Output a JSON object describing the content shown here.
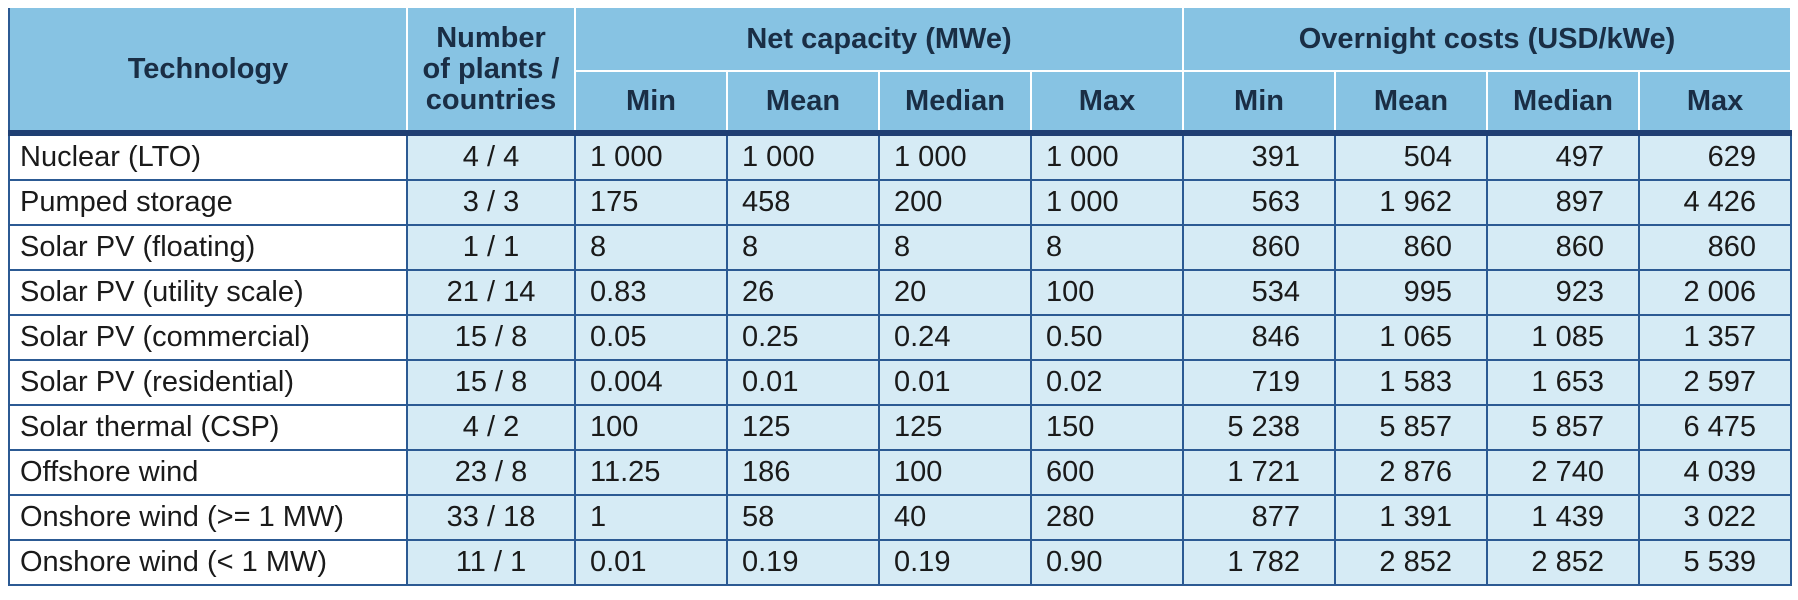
{
  "header": {
    "technology": "Technology",
    "number_line1": "Number",
    "number_line2": "of plants /",
    "number_line3": "countries",
    "net_capacity": "Net capacity (MWe)",
    "overnight_costs": "Overnight costs (USD/kWe)",
    "sub": [
      "Min",
      "Mean",
      "Median",
      "Max",
      "Min",
      "Mean",
      "Median",
      "Max"
    ]
  },
  "rows": [
    {
      "tech": "Nuclear (LTO)",
      "num": "4 / 4",
      "cap": [
        "1 000",
        "1 000",
        "1 000",
        "1 000"
      ],
      "cost": [
        "391",
        "504",
        "497",
        "629"
      ]
    },
    {
      "tech": "Pumped storage",
      "num": "3 / 3",
      "cap": [
        "175",
        "458",
        "200",
        "1 000"
      ],
      "cost": [
        "563",
        "1 962",
        "897",
        "4 426"
      ]
    },
    {
      "tech": "Solar PV (floating)",
      "num": "1 / 1",
      "cap": [
        "8",
        "8",
        "8",
        "8"
      ],
      "cost": [
        "860",
        "860",
        "860",
        "860"
      ]
    },
    {
      "tech": "Solar PV (utility scale)",
      "num": "21 / 14",
      "cap": [
        "0.83",
        "26",
        "20",
        "100"
      ],
      "cost": [
        "534",
        "995",
        "923",
        "2 006"
      ]
    },
    {
      "tech": "Solar PV (commercial)",
      "num": "15 / 8",
      "cap": [
        "0.05",
        "0.25",
        "0.24",
        "0.50"
      ],
      "cost": [
        "846",
        "1 065",
        "1 085",
        "1 357"
      ]
    },
    {
      "tech": "Solar PV (residential)",
      "num": "15 / 8",
      "cap": [
        "0.004",
        "0.01",
        "0.01",
        "0.02"
      ],
      "cost": [
        "719",
        "1 583",
        "1 653",
        "2 597"
      ]
    },
    {
      "tech": "Solar thermal (CSP)",
      "num": "4 / 2",
      "cap": [
        "100",
        "125",
        "125",
        "150"
      ],
      "cost": [
        "5 238",
        "5 857",
        "5 857",
        "6 475"
      ]
    },
    {
      "tech": "Offshore wind",
      "num": "23 / 8",
      "cap": [
        "11.25",
        "186",
        "100",
        "600"
      ],
      "cost": [
        "1 721",
        "2 876",
        "2 740",
        "4 039"
      ]
    },
    {
      "tech": "Onshore wind (>= 1 MW)",
      "num": "33 / 18",
      "cap": [
        "1",
        "58",
        "40",
        "280"
      ],
      "cost": [
        "877",
        "1 391",
        "1 439",
        "3 022"
      ]
    },
    {
      "tech": "Onshore wind (< 1 MW)",
      "num": "11 / 1",
      "cap": [
        "0.01",
        "0.19",
        "0.19",
        "0.90"
      ],
      "cost": [
        "1 782",
        "2 852",
        "2 852",
        "5 539"
      ]
    }
  ],
  "colors": {
    "header_bg": "#87c3e3",
    "cell_bg": "#d6ebf5",
    "border": "#2c5a93",
    "header_rule": "#1f3f73"
  }
}
